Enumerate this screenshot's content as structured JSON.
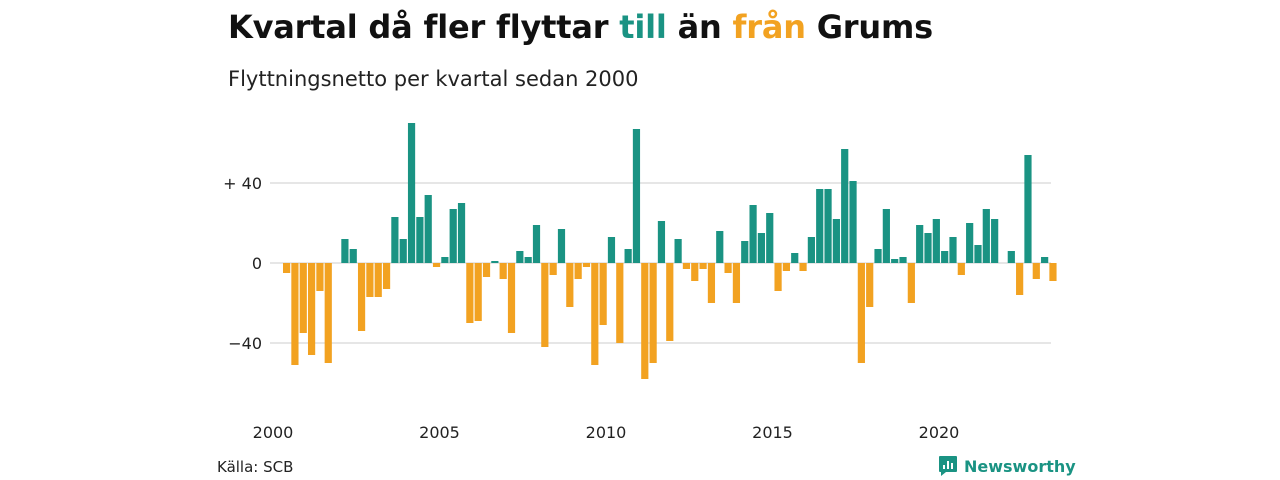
{
  "header": {
    "title_before": "Kvartal då fler flyttar ",
    "title_pos": "till",
    "title_mid": " än ",
    "title_neg": "från",
    "title_after": " Grums",
    "subtitle": "Flyttningsnetto per kvartal sedan 2000"
  },
  "footer": {
    "source": "Källa: SCB",
    "brand": "Newsworthy"
  },
  "colors": {
    "positive": "#1a9383",
    "negative": "#f2a221",
    "grid": "#dddddd"
  },
  "chart_data": {
    "type": "bar",
    "title": "Kvartal då fler flyttar till än från Grums",
    "subtitle": "Flyttningsnetto per kvartal sedan 2000",
    "xlabel": "",
    "ylabel": "",
    "ylim": [
      -60,
      72
    ],
    "yticks": [
      {
        "value": 40,
        "label": "+ 40"
      },
      {
        "value": 0,
        "label": "0"
      },
      {
        "value": -40,
        "label": "−40"
      }
    ],
    "xticks": [
      {
        "value": 2000,
        "label": "2000"
      },
      {
        "value": 2005,
        "label": "2005"
      },
      {
        "value": 2010,
        "label": "2010"
      },
      {
        "value": 2015,
        "label": "2015"
      },
      {
        "value": 2020,
        "label": "2020"
      }
    ],
    "grid": "horizontal",
    "start_quarter": "2000 K1",
    "values": [
      -5,
      -51,
      -35,
      -46,
      -14,
      -50,
      0,
      12,
      7,
      -34,
      -17,
      -17,
      -13,
      23,
      12,
      70,
      23,
      34,
      -2,
      3,
      27,
      30,
      -30,
      -29,
      -7,
      1,
      -8,
      -35,
      6,
      3,
      19,
      -42,
      -6,
      17,
      -22,
      -8,
      -2,
      -51,
      -31,
      13,
      -40,
      7,
      67,
      -58,
      -50,
      21,
      -39,
      12,
      -3,
      -9,
      -3,
      -20,
      16,
      -5,
      -20,
      11,
      29,
      15,
      25,
      -14,
      -4,
      5,
      -4,
      13,
      37,
      37,
      22,
      57,
      41,
      -50,
      -22,
      7,
      27,
      2,
      3,
      -20,
      19,
      15,
      22,
      6,
      13,
      -6,
      20,
      9,
      27,
      22,
      0,
      6,
      -16,
      54,
      -8,
      3,
      -9
    ]
  }
}
